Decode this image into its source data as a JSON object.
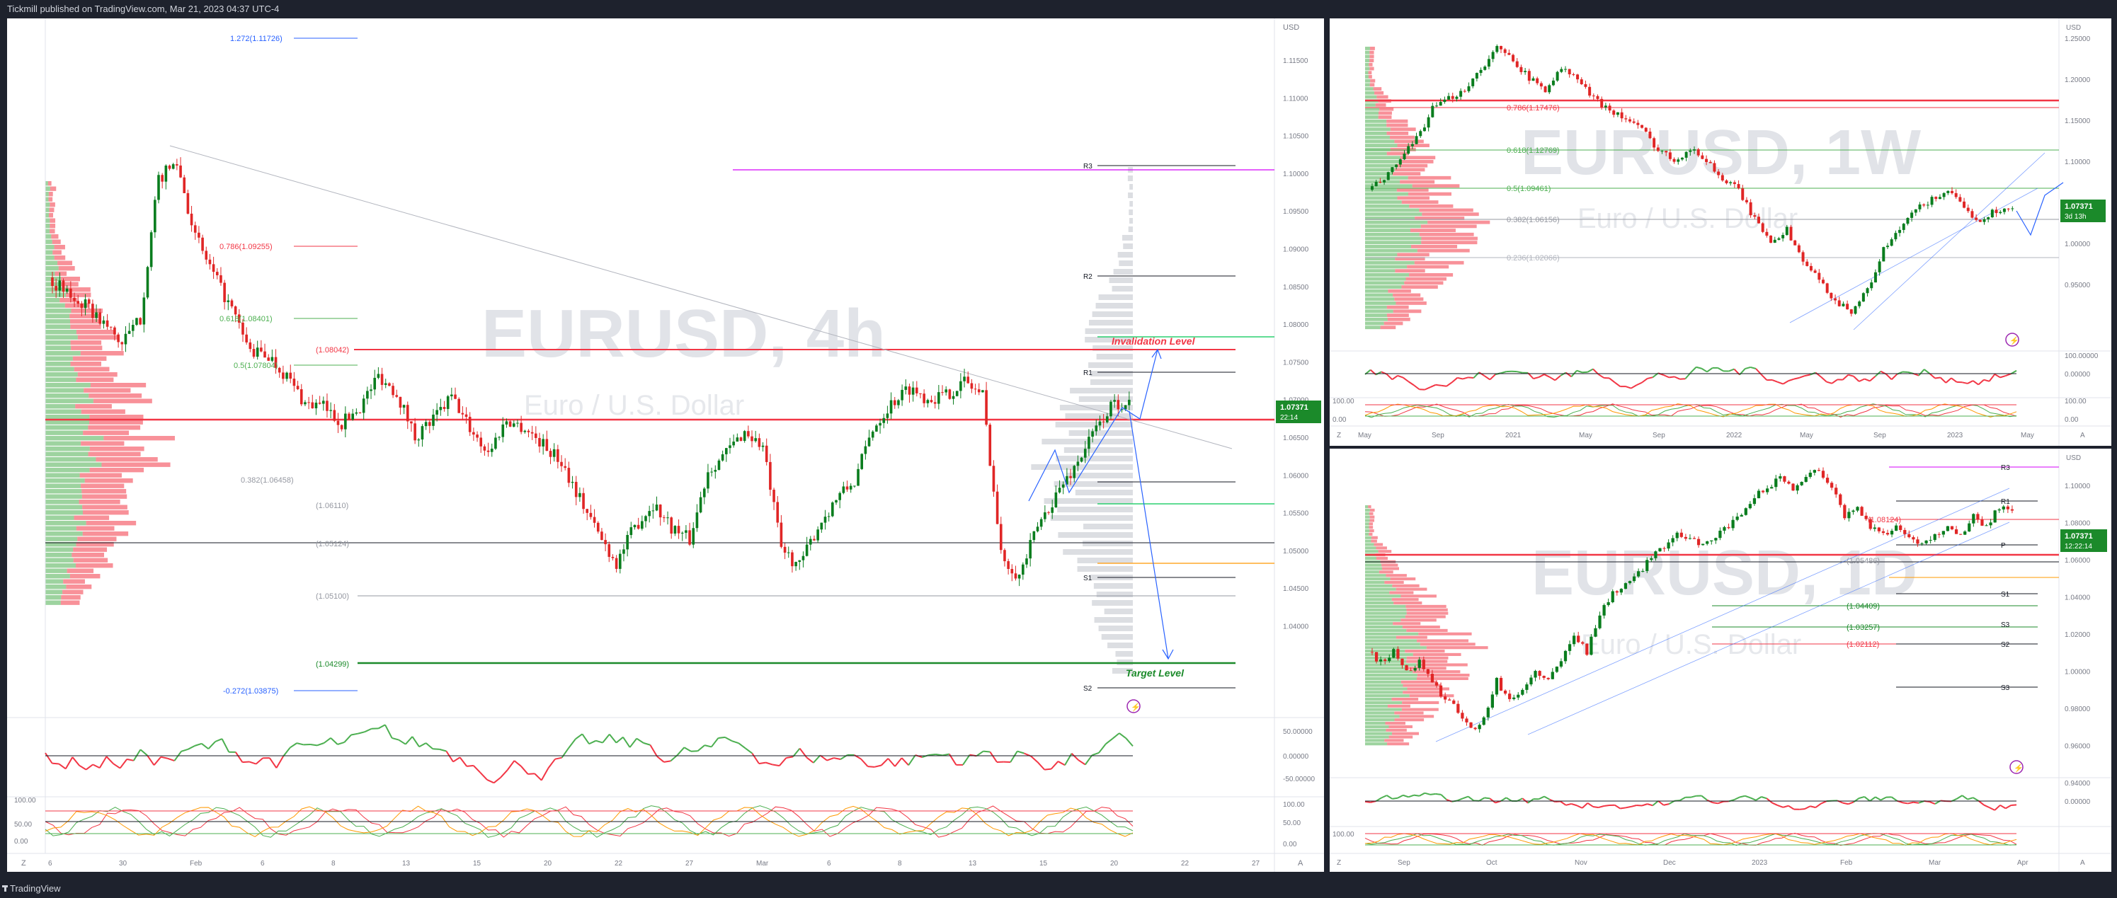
{
  "header": {
    "publish_line": "Tickmill published on TradingView.com, Mar 21, 2023 04:37 UTC-4"
  },
  "footer": {
    "brand": "TradingView"
  },
  "colors": {
    "bull": "#089981",
    "bear": "#f23645",
    "candle_up": "#0a7d1e",
    "candle_down": "#e02626",
    "fib_blue": "#2962ff",
    "bg": "#1e222d"
  },
  "main": {
    "symbol_watermark": "EURUSD, 4h",
    "name_watermark": "Euro / U.S. Dollar",
    "currency": "USD",
    "price_badge": "1.07371",
    "countdown": "22:14",
    "y_ticks": [
      "1.11500",
      "1.11000",
      "1.10500",
      "1.10000",
      "1.09500",
      "1.09000",
      "1.08500",
      "1.08000",
      "1.07500",
      "1.07000",
      "1.06500",
      "1.06000",
      "1.05500",
      "1.05000",
      "1.04500",
      "1.04000"
    ],
    "fib_labels": [
      {
        "text": "1.272(1.11726)",
        "color": "#2962ff"
      },
      {
        "text": "0.786(1.09255)",
        "color": "#f23645"
      },
      {
        "text": "0.618(1.08401)",
        "color": "#4caf50"
      },
      {
        "text": "0.5(1.07804)",
        "color": "#4caf50"
      },
      {
        "text": "(1.08042)",
        "color": "#f23645"
      },
      {
        "text": "0.382(1.06458)",
        "color": "#9598a1"
      },
      {
        "text": "(1.06110)",
        "color": "#9598a1"
      },
      {
        "text": "(1.05124)",
        "color": "#9598a1"
      },
      {
        "text": "(1.05100)",
        "color": "#9598a1"
      },
      {
        "text": "(1.04299)",
        "color": "#1b8a2a"
      },
      {
        "text": "-0.272(1.03875)",
        "color": "#2962ff"
      }
    ],
    "pivots": [
      "R3",
      "R2",
      "R1",
      "S1",
      "S2"
    ],
    "annotations": {
      "invalidation": "Invalidation Level",
      "target": "Target Level"
    },
    "osc1_ticks": [
      "50.00000",
      "0.00000",
      "-50.00000"
    ],
    "osc2_ticks": [
      "100.00",
      "50.00",
      "0.00"
    ],
    "x_ticks": [
      "6",
      "30",
      "Feb",
      "6",
      "8",
      "13",
      "15",
      "20",
      "22",
      "27",
      "Mar",
      "6",
      "8",
      "13",
      "15",
      "20",
      "22",
      "27"
    ],
    "scale_buttons": [
      "Z",
      "A"
    ]
  },
  "weekly": {
    "symbol_watermark": "EURUSD, 1W",
    "name_watermark": "Euro / U.S. Dollar",
    "currency": "USD",
    "price_badge": "1.07371",
    "countdown": "3d 13h",
    "y_ticks": [
      "1.25000",
      "1.20000",
      "1.15000",
      "1.10000",
      "1.05000",
      "1.00000",
      "0.95000"
    ],
    "fib_labels": [
      {
        "text": "0.786(1.17476)",
        "color": "#f23645"
      },
      {
        "text": "0.618(1.12769)",
        "color": "#4caf50"
      },
      {
        "text": "0.5(1.09461)",
        "color": "#4caf50"
      },
      {
        "text": "0.382(1.06156)",
        "color": "#9598a1"
      },
      {
        "text": "0.236(1.02066)",
        "color": "#b2b5be"
      }
    ],
    "osc1_ticks": [
      "100.00000",
      "0.00000"
    ],
    "osc2_ticks": [
      "100.00",
      "0.00"
    ],
    "x_ticks": [
      "May",
      "Sep",
      "2021",
      "May",
      "Sep",
      "2022",
      "May",
      "Sep",
      "2023",
      "May"
    ],
    "scale_buttons": [
      "Z",
      "A"
    ]
  },
  "daily": {
    "symbol_watermark": "EURUSD, 1D",
    "name_watermark": "Euro / U.S. Dollar",
    "currency": "USD",
    "price_badge": "1.07371",
    "countdown": "12:22:14",
    "y_ticks": [
      "1.10000",
      "1.08000",
      "1.06000",
      "1.04000",
      "1.02000",
      "1.00000",
      "0.98000",
      "0.96000",
      "0.94000"
    ],
    "fib_labels": [
      {
        "text": "(1.08124)",
        "color": "#f23645"
      },
      {
        "text": "(1.05486)",
        "color": "#9598a1"
      },
      {
        "text": "(1.04409)",
        "color": "#1b8a2a"
      },
      {
        "text": "(1.03257)",
        "color": "#1b8a2a"
      },
      {
        "text": "(1.02112)",
        "color": "#f23645"
      }
    ],
    "pivots": [
      "R3",
      "R1",
      "P",
      "S1",
      "S2",
      "S3",
      "S3"
    ],
    "osc1_ticks": [
      "0.00000"
    ],
    "osc2_ticks": [
      "100.00"
    ],
    "x_ticks": [
      "Sep",
      "Oct",
      "Nov",
      "Dec",
      "2023",
      "Feb",
      "Mar",
      "Apr"
    ],
    "scale_buttons": [
      "Z",
      "A"
    ]
  },
  "chart_data": [
    {
      "type": "line",
      "title": "EURUSD, 4h",
      "subtitle": "Euro / U.S. Dollar",
      "ylim": [
        1.035,
        1.12
      ],
      "last_price": 1.07371,
      "key_levels": {
        "invalidation": 1.08042,
        "target": 1.04299,
        "fib_1_272": 1.11726,
        "fib_0_786": 1.09255,
        "fib_0_618": 1.08401,
        "fib_0_5": 1.07804,
        "fib_0_382": 1.06458,
        "fib_neg_0_272": 1.03875
      },
      "series": [
        {
          "values": [
            1.0885,
            1.0865,
            1.085,
            1.083,
            1.0805,
            1.0835,
            1.1005,
            1.1025,
            1.0935,
            1.0888,
            1.0845,
            1.0795,
            1.079,
            1.0765,
            1.0732,
            1.0728,
            1.0708,
            1.0728,
            1.0766,
            1.0745,
            1.0692,
            1.0712,
            1.074,
            1.0702,
            1.0672,
            1.0712,
            1.0702,
            1.0682,
            1.0661,
            1.0617,
            1.0574,
            1.0538,
            1.0582,
            1.061,
            1.0582,
            1.0566,
            1.0651,
            1.0672,
            1.0698,
            1.0679,
            1.0555,
            1.0534,
            1.0582,
            1.0616,
            1.0637,
            1.0702,
            1.0732,
            1.0751,
            1.0738,
            1.0742,
            1.0759,
            1.0742,
            1.0548,
            1.0522,
            1.0582,
            1.0621,
            1.0654,
            1.0694,
            1.0728,
            1.0737
          ]
        }
      ]
    },
    {
      "type": "line",
      "title": "EURUSD, 1W",
      "subtitle": "Euro / U.S. Dollar",
      "ylim": [
        0.93,
        1.26
      ],
      "last_price": 1.07371,
      "series": [
        {
          "values": [
            1.09,
            1.1,
            1.12,
            1.14,
            1.17,
            1.18,
            1.19,
            1.21,
            1.23,
            1.22,
            1.2,
            1.19,
            1.21,
            1.2,
            1.18,
            1.17,
            1.16,
            1.15,
            1.13,
            1.12,
            1.13,
            1.12,
            1.1,
            1.09,
            1.06,
            1.04,
            1.05,
            1.02,
            1.0,
            0.98,
            0.97,
            0.99,
            1.03,
            1.05,
            1.07,
            1.08,
            1.09,
            1.07,
            1.06,
            1.07,
            1.07
          ]
        }
      ]
    },
    {
      "type": "line",
      "title": "EURUSD, 1D",
      "subtitle": "Euro / U.S. Dollar",
      "ylim": [
        0.935,
        1.105
      ],
      "last_price": 1.07371,
      "series": [
        {
          "values": [
            1.0,
            0.995,
            1.0,
            0.99,
            0.995,
            0.985,
            0.975,
            0.97,
            0.96,
            0.965,
            0.985,
            0.975,
            0.98,
            0.99,
            0.985,
            0.995,
            1.01,
            1.0,
            1.02,
            1.03,
            1.035,
            1.04,
            1.05,
            1.055,
            1.06,
            1.06,
            1.055,
            1.06,
            1.065,
            1.07,
            1.08,
            1.085,
            1.09,
            1.085,
            1.09,
            1.095,
            1.085,
            1.07,
            1.075,
            1.065,
            1.06,
            1.065,
            1.06,
            1.055,
            1.06,
            1.065,
            1.06,
            1.07,
            1.065,
            1.075,
            1.074
          ]
        }
      ]
    }
  ]
}
